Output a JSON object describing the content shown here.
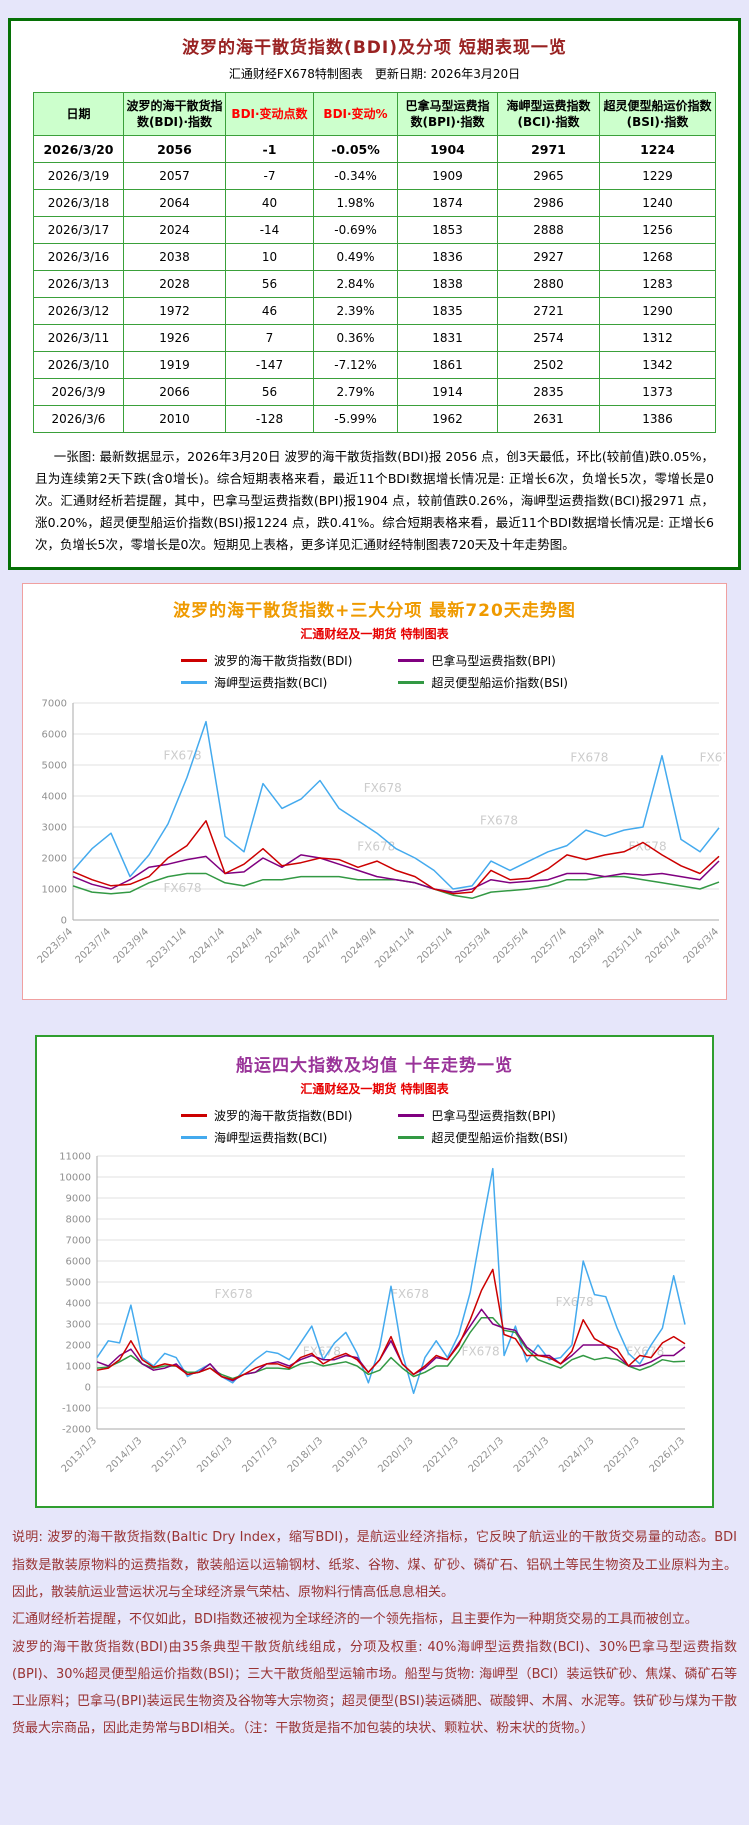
{
  "report": {
    "title": "波罗的海干散货指数(BDI)及分项 短期表现一览",
    "subtitle": "汇通财经FX678特制图表　更新日期: 2026年3月20日",
    "summary": "一张图: 最新数据显示，2026年3月20日 波罗的海干散货指数(BDI)报 2056 点，创3天最低，环比(较前值)跌0.05%，且为连续第2天下跌(含0增长)。综合短期表格来看，最近11个BDI数据增长情况是: 正增长6次，负增长5次，零增长是0次。汇通财经析若提醒，其中，巴拿马型运费指数(BPI)报1904 点，较前值跌0.26%，海岬型运费指数(BCI)报2971 点，涨0.20%，超灵便型船运价指数(BSI)报1224 点，跌0.41%。综合短期表格来看，最近11个BDI数据增长情况是: 正增长6次，负增长5次，零增长是0次。短期见上表格，更多详见汇通财经特制图表720天及十年走势图。"
  },
  "table": {
    "columns": [
      {
        "label": "日期",
        "color": "#000000"
      },
      {
        "label": "波罗的海干散货指数(BDI)·指数",
        "color": "#000000"
      },
      {
        "label": "BDI·变动点数",
        "color": "#ff0000"
      },
      {
        "label": "BDI·变动%",
        "color": "#ff0000"
      },
      {
        "label": "巴拿马型运费指数(BPI)·指数",
        "color": "#000000"
      },
      {
        "label": "海岬型运费指数(BCI)·指数",
        "color": "#000000"
      },
      {
        "label": "超灵便型船运价指数(BSI)·指数",
        "color": "#000000"
      }
    ],
    "rows": [
      [
        "2026/3/20",
        "2056",
        "-1",
        "-0.05%",
        "1904",
        "2971",
        "1224"
      ],
      [
        "2026/3/19",
        "2057",
        "-7",
        "-0.34%",
        "1909",
        "2965",
        "1229"
      ],
      [
        "2026/3/18",
        "2064",
        "40",
        "1.98%",
        "1874",
        "2986",
        "1240"
      ],
      [
        "2026/3/17",
        "2024",
        "-14",
        "-0.69%",
        "1853",
        "2888",
        "1256"
      ],
      [
        "2026/3/16",
        "2038",
        "10",
        "0.49%",
        "1836",
        "2927",
        "1268"
      ],
      [
        "2026/3/13",
        "2028",
        "56",
        "2.84%",
        "1838",
        "2880",
        "1283"
      ],
      [
        "2026/3/12",
        "1972",
        "46",
        "2.39%",
        "1835",
        "2721",
        "1290"
      ],
      [
        "2026/3/11",
        "1926",
        "7",
        "0.36%",
        "1831",
        "2574",
        "1312"
      ],
      [
        "2026/3/10",
        "1919",
        "-147",
        "-7.12%",
        "1861",
        "2502",
        "1342"
      ],
      [
        "2026/3/9",
        "2066",
        "56",
        "2.79%",
        "1914",
        "2835",
        "1373"
      ],
      [
        "2026/3/6",
        "2010",
        "-128",
        "-5.99%",
        "1962",
        "2631",
        "1386"
      ]
    ]
  },
  "chart_data": [
    {
      "type": "line",
      "title": "波罗的海干散货指数+三大分项  最新720天走势图",
      "subtitle": "汇通财经及一期货 特制图表",
      "watermark": "FX678",
      "grid": true,
      "legend_position": "top",
      "ylim": [
        0,
        7000
      ],
      "ytick_step": 1000,
      "x_interval": "monthly 2023/5 - 2026/3",
      "x_ticks": [
        "2023/5/4",
        "2023/7/4",
        "2023/9/4",
        "2023/11/4",
        "2024/1/4",
        "2024/3/4",
        "2024/5/4",
        "2024/7/4",
        "2024/9/4",
        "2024/11/4",
        "2025/1/4",
        "2025/3/4",
        "2025/5/4",
        "2025/7/4",
        "2025/9/4",
        "2025/11/4",
        "2026/1/4",
        "2026/3/4"
      ],
      "series": [
        {
          "id": "bdi",
          "name": "波罗的海干散货指数(BDI)",
          "color": "#cc0000",
          "values": [
            1558,
            1300,
            1103,
            1150,
            1400,
            2000,
            2400,
            3200,
            1500,
            1800,
            2300,
            1750,
            1850,
            2000,
            1950,
            1700,
            1900,
            1600,
            1400,
            1000,
            850,
            900,
            1600,
            1300,
            1350,
            1650,
            2100,
            1950,
            2100,
            2200,
            2500,
            2100,
            1750,
            1500,
            2056
          ]
        },
        {
          "id": "bpi",
          "name": "巴拿马型运费指数(BPI)",
          "color": "#800080",
          "values": [
            1400,
            1150,
            1000,
            1300,
            1700,
            1800,
            1950,
            2050,
            1500,
            1550,
            2000,
            1700,
            2100,
            2000,
            1800,
            1600,
            1400,
            1300,
            1200,
            1000,
            900,
            1000,
            1300,
            1200,
            1250,
            1300,
            1500,
            1500,
            1400,
            1500,
            1450,
            1500,
            1400,
            1300,
            1904
          ]
        },
        {
          "id": "bci",
          "name": "海岬型运费指数(BCI)",
          "color": "#44aaee",
          "values": [
            1600,
            2300,
            2800,
            1400,
            2100,
            3100,
            4600,
            6400,
            2700,
            2200,
            4400,
            3600,
            3900,
            4500,
            3600,
            3200,
            2800,
            2300,
            2000,
            1600,
            1000,
            1100,
            1900,
            1600,
            1900,
            2200,
            2400,
            2900,
            2700,
            2900,
            3000,
            5300,
            2600,
            2200,
            2971
          ]
        },
        {
          "id": "bsi",
          "name": "超灵便型船运价指数(BSI)",
          "color": "#339944",
          "values": [
            1100,
            900,
            850,
            900,
            1200,
            1400,
            1500,
            1500,
            1200,
            1100,
            1300,
            1300,
            1400,
            1400,
            1400,
            1300,
            1300,
            1300,
            1200,
            1000,
            800,
            700,
            900,
            950,
            1000,
            1100,
            1300,
            1300,
            1400,
            1400,
            1300,
            1200,
            1100,
            1000,
            1224
          ]
        }
      ]
    },
    {
      "type": "line",
      "title": "船运四大指数及均值 十年走势一览",
      "subtitle": "汇通财经及一期货 特制图表",
      "watermark": "FX678",
      "grid": true,
      "legend_position": "top",
      "ylim": [
        -2000,
        11000
      ],
      "ytick_step": 1000,
      "x_interval": "quarterly 2013 - 2026",
      "x_ticks": [
        "2013/1/3",
        "2014/1/3",
        "2015/1/3",
        "2016/1/3",
        "2017/1/3",
        "2018/1/3",
        "2019/1/3",
        "2020/1/3",
        "2021/1/3",
        "2022/1/3",
        "2023/1/3",
        "2024/1/3",
        "2025/1/3",
        "2026/1/3"
      ],
      "series": [
        {
          "id": "bdi",
          "name": "波罗的海干散货指数(BDI)",
          "color": "#cc0000",
          "values": [
            800,
            900,
            1300,
            2200,
            1300,
            950,
            1100,
            1000,
            600,
            700,
            900,
            500,
            350,
            600,
            900,
            1100,
            1100,
            900,
            1400,
            1600,
            1100,
            1400,
            1600,
            1300,
            700,
            1300,
            2400,
            1100,
            600,
            1000,
            1500,
            1300,
            2000,
            3200,
            4600,
            5600,
            2500,
            2300,
            1500,
            1500,
            1400,
            1100,
            1700,
            3200,
            2300,
            2000,
            1800,
            1000,
            1500,
            1400,
            2100,
            2400,
            2056
          ]
        },
        {
          "id": "bpi",
          "name": "巴拿马型运费指数(BPI)",
          "color": "#800080",
          "values": [
            1200,
            1000,
            1500,
            1800,
            1100,
            800,
            900,
            1100,
            600,
            700,
            1100,
            500,
            300,
            600,
            700,
            1100,
            1200,
            1000,
            1300,
            1500,
            1300,
            1300,
            1500,
            1400,
            700,
            1300,
            2200,
            1100,
            600,
            900,
            1400,
            1300,
            2100,
            2900,
            3700,
            3000,
            2800,
            2700,
            1900,
            1500,
            1500,
            1100,
            1500,
            2000,
            2000,
            2000,
            1500,
            1000,
            1000,
            1200,
            1500,
            1500,
            1904
          ]
        },
        {
          "id": "bci",
          "name": "海岬型运费指数(BCI)",
          "color": "#44aaee",
          "values": [
            1400,
            2200,
            2100,
            3900,
            1400,
            1000,
            1600,
            1400,
            500,
            800,
            1100,
            500,
            200,
            800,
            1300,
            1700,
            1600,
            1300,
            2100,
            2900,
            1300,
            2100,
            2600,
            1600,
            200,
            1900,
            4800,
            1600,
            -300,
            1400,
            2200,
            1400,
            2500,
            4500,
            7500,
            10400,
            1500,
            2900,
            1200,
            2000,
            1300,
            1400,
            2000,
            6000,
            4400,
            4300,
            2800,
            1600,
            1100,
            2000,
            2800,
            5300,
            2971
          ]
        },
        {
          "id": "bsi",
          "name": "超灵便型船运价指数(BSI)",
          "color": "#339944",
          "values": [
            900,
            950,
            1200,
            1500,
            1100,
            900,
            1000,
            1000,
            700,
            700,
            900,
            600,
            400,
            600,
            700,
            900,
            900,
            850,
            1100,
            1200,
            1000,
            1100,
            1200,
            1000,
            600,
            800,
            1400,
            900,
            500,
            700,
            1000,
            1000,
            1700,
            2600,
            3300,
            3300,
            2700,
            2600,
            1800,
            1300,
            1100,
            900,
            1300,
            1500,
            1300,
            1400,
            1300,
            1000,
            800,
            1000,
            1300,
            1200,
            1224
          ]
        }
      ]
    }
  ],
  "explanation": {
    "paragraphs": [
      "说明: 波罗的海干散货指数(Baltic Dry Index，缩写BDI)，是航运业经济指标，它反映了航运业的干散货交易量的动态。BDI指数是散装原物料的运费指数，散装船运以运输钢材、纸浆、谷物、煤、矿砂、磷矿石、铝矾土等民生物资及工业原料为主。因此，散装航运业营运状况与全球经济景气荣枯、原物料行情高低息息相关。",
      "汇通财经析若提醒，不仅如此，BDI指数还被视为全球经济的一个领先指标，且主要作为一种期货交易的工具而被创立。",
      "波罗的海干散货指数(BDI)由35条典型干散货航线组成，分项及权重: 40%海岬型运费指数(BCI)、30%巴拿马型运费指数(BPI)、30%超灵便型船运价指数(BSI)；三大干散货船型运输市场。船型与货物: 海岬型（BCI）装运铁矿砂、焦煤、磷矿石等工业原料；巴拿马(BPI)装运民生物资及谷物等大宗物资；超灵便型(BSI)装运磷肥、碳酸钾、木屑、水泥等。铁矿砂与煤为干散货最大宗商品，因此走势常与BDI相关。（注：干散货是指不加包装的块状、颗粒状、粉末状的货物。）"
    ]
  }
}
